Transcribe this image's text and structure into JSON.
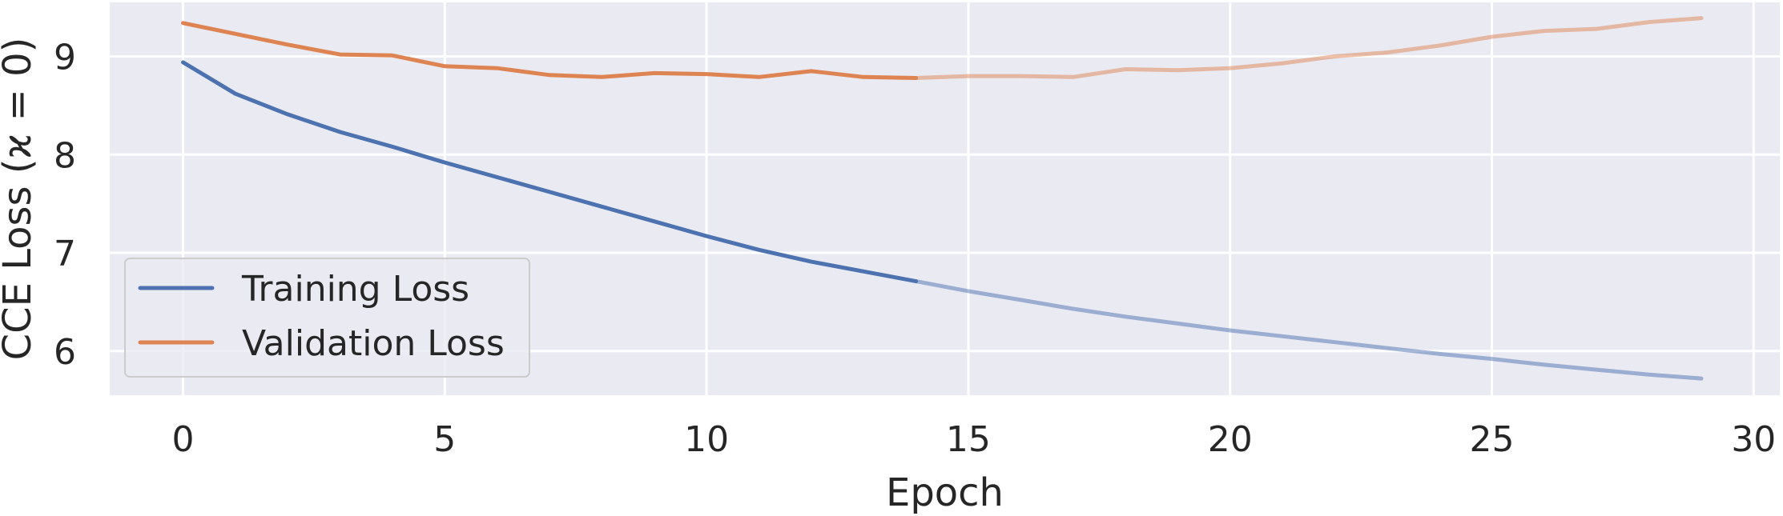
{
  "chart_data": {
    "type": "line",
    "xlabel": "Epoch",
    "ylabel": "CCE Loss (ϰ = 0)",
    "xlim": [
      -1.4,
      30.5
    ],
    "ylim": [
      5.55,
      9.55
    ],
    "xticks": [
      0,
      5,
      10,
      15,
      20,
      25,
      30
    ],
    "yticks": [
      6,
      7,
      8,
      9
    ],
    "grid": true,
    "legend_position": "lower-left",
    "solid_until_epoch": 14,
    "series": [
      {
        "name": "Training Loss",
        "color": "#4c72b0",
        "x": [
          0,
          1,
          2,
          3,
          4,
          5,
          6,
          7,
          8,
          9,
          10,
          11,
          12,
          13,
          14,
          15,
          16,
          17,
          18,
          19,
          20,
          21,
          22,
          23,
          24,
          25,
          26,
          27,
          28,
          29
        ],
        "values": [
          8.94,
          8.62,
          8.41,
          8.23,
          8.08,
          7.92,
          7.77,
          7.62,
          7.47,
          7.32,
          7.17,
          7.03,
          6.91,
          6.81,
          6.71,
          6.61,
          6.52,
          6.43,
          6.35,
          6.28,
          6.21,
          6.15,
          6.09,
          6.03,
          5.97,
          5.92,
          5.86,
          5.81,
          5.76,
          5.72
        ]
      },
      {
        "name": "Validation Loss",
        "color": "#dd8452",
        "x": [
          0,
          1,
          2,
          3,
          4,
          5,
          6,
          7,
          8,
          9,
          10,
          11,
          12,
          13,
          14,
          15,
          16,
          17,
          18,
          19,
          20,
          21,
          22,
          23,
          24,
          25,
          26,
          27,
          28,
          29
        ],
        "values": [
          9.34,
          9.23,
          9.12,
          9.02,
          9.01,
          8.9,
          8.88,
          8.81,
          8.79,
          8.83,
          8.82,
          8.79,
          8.85,
          8.79,
          8.78,
          8.8,
          8.8,
          8.79,
          8.87,
          8.86,
          8.88,
          8.93,
          9.0,
          9.04,
          9.11,
          9.2,
          9.26,
          9.28,
          9.35,
          9.39
        ]
      }
    ]
  }
}
